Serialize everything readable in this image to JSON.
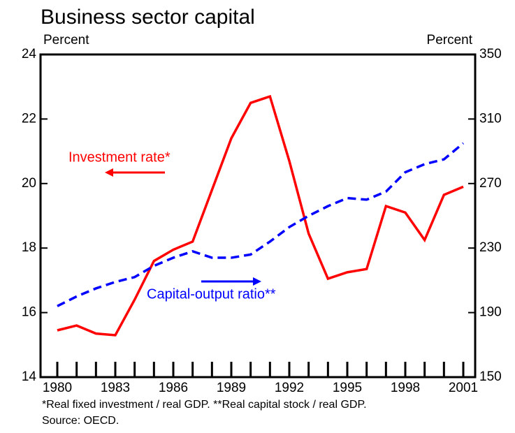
{
  "chart_data": {
    "type": "line",
    "title": "Business sector capital",
    "ylabel": "Percent",
    "y2label": "Percent",
    "x": [
      1980,
      1981,
      1982,
      1983,
      1984,
      1985,
      1986,
      1987,
      1988,
      1989,
      1990,
      1991,
      1992,
      1993,
      1994,
      1995,
      1996,
      1997,
      1998,
      1999,
      2000,
      2001
    ],
    "xlim": [
      1980,
      2001
    ],
    "xticks": [
      1980,
      1983,
      1986,
      1989,
      1992,
      1995,
      1998,
      2001
    ],
    "ylim": [
      14,
      24
    ],
    "yticks": [
      14,
      16,
      18,
      20,
      22,
      24
    ],
    "y2lim": [
      150,
      350
    ],
    "y2ticks": [
      150,
      190,
      230,
      270,
      310,
      350
    ],
    "series": [
      {
        "name": "Investment rate*",
        "color": "#ff0000",
        "dash": "solid",
        "values": [
          15.45,
          15.6,
          15.35,
          15.3,
          16.4,
          17.6,
          17.95,
          18.2,
          19.8,
          21.4,
          22.5,
          22.7,
          20.7,
          18.45,
          17.05,
          17.25,
          17.35,
          19.3,
          19.1,
          18.25,
          19.65,
          19.9
        ]
      },
      {
        "name": "Capital-output ratio**",
        "color": "#0000ff",
        "dash": "dashed",
        "axis": "y2",
        "values": [
          194,
          200,
          205,
          209,
          212,
          219,
          224,
          228,
          224,
          224,
          226,
          234,
          243,
          250,
          256,
          261,
          260,
          265,
          277,
          282,
          285,
          295
        ]
      }
    ],
    "footnote": "*Real fixed investment / real GDP.  **Real capital stock / real GDP.",
    "source": "Source: OECD."
  }
}
